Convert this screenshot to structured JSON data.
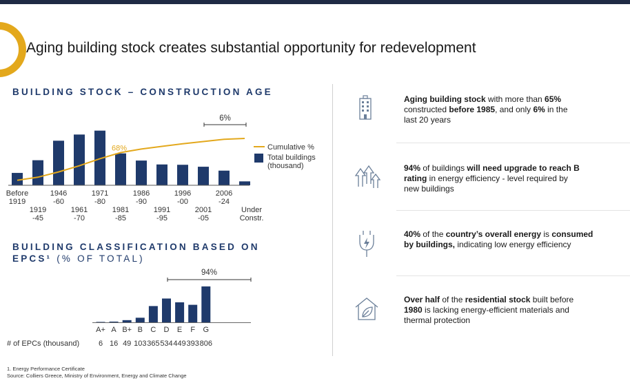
{
  "header": {
    "title": "Aging building stock creates substantial opportunity for redevelopment",
    "accent_color": "#e3a81c",
    "navy_color": "#1f3a6b"
  },
  "chart_data": [
    {
      "type": "bar",
      "title": "BUILDING STOCK – CONSTRUCTION AGE",
      "categories_top": [
        "Before 1919",
        "1946 -60",
        "1971 -80",
        "1986 -90",
        "1996 -00",
        "2006 -24"
      ],
      "categories": [
        {
          "line1": "Before",
          "line2": "1919"
        },
        {
          "line1": "1919",
          "line2": "-45"
        },
        {
          "line1": "1946",
          "line2": "-60"
        },
        {
          "line1": "1961",
          "line2": "-70"
        },
        {
          "line1": "1971",
          "line2": "-80"
        },
        {
          "line1": "1981",
          "line2": "-85"
        },
        {
          "line1": "1986",
          "line2": "-90"
        },
        {
          "line1": "1991",
          "line2": "-95"
        },
        {
          "line1": "1996",
          "line2": "-00"
        },
        {
          "line1": "2001",
          "line2": "-05"
        },
        {
          "line1": "2006",
          "line2": "-24"
        },
        {
          "line1": "Under",
          "line2": "Constr."
        }
      ],
      "values": [
        190,
        385,
        685,
        780,
        840,
        490,
        380,
        320,
        315,
        285,
        225,
        60
      ],
      "cumulative": [
        5,
        12,
        24,
        38,
        54,
        68,
        76,
        82,
        88,
        93,
        98,
        100
      ],
      "ylim": [
        0,
        900
      ],
      "annotations": {
        "cumulative_point": "68%",
        "bracket": "6%"
      },
      "legend": [
        {
          "label": "Cumulative %",
          "type": "line",
          "color": "#e3a81c"
        },
        {
          "label": "Total buildings",
          "label2": "(thousand)",
          "type": "bar",
          "color": "#1f3a6b"
        }
      ],
      "legend_position": "right"
    },
    {
      "type": "bar",
      "title": "BUILDING CLASSIFICATION BASED ON",
      "title_line2": "EPCS¹",
      "title_suffix": "(% OF TOTAL)",
      "categories": [
        "A+",
        "A",
        "B+",
        "B",
        "C",
        "D",
        "E",
        "F",
        "G"
      ],
      "values": [
        6,
        16,
        49,
        103,
        365,
        534,
        449,
        393,
        806
      ],
      "value_labels": [
        "6",
        "16",
        "49",
        "103",
        "365",
        "534",
        "449",
        "393",
        "806"
      ],
      "row_label": "# of EPCs (thousand)",
      "ylim": [
        0,
        850
      ],
      "annotations": {
        "bracket": "94%"
      },
      "color": "#1f3a6b"
    }
  ],
  "highlights": [
    {
      "icon": "building-icon",
      "lines": [
        [
          {
            "t": "Aging building stock",
            "b": true
          },
          {
            "t": " with more than ",
            "b": false
          },
          {
            "t": "65%",
            "b": true
          }
        ],
        [
          {
            "t": "constructed ",
            "b": false
          },
          {
            "t": "before 1985",
            "b": true
          },
          {
            "t": ", and only ",
            "b": false
          },
          {
            "t": "6%",
            "b": true
          },
          {
            "t": " in the",
            "b": false
          }
        ],
        [
          {
            "t": "last 20 years",
            "b": false
          }
        ]
      ]
    },
    {
      "icon": "upgrade-arrows-icon",
      "lines": [
        [
          {
            "t": "94%",
            "b": true
          },
          {
            "t": " of buildings ",
            "b": false
          },
          {
            "t": "will need upgrade to reach B",
            "b": true
          }
        ],
        [
          {
            "t": "rating",
            "b": true
          },
          {
            "t": " in energy efficiency - level required by",
            "b": false
          }
        ],
        [
          {
            "t": "new buildings",
            "b": false
          }
        ]
      ]
    },
    {
      "icon": "energy-plug-icon",
      "lines": [
        [
          {
            "t": "40%",
            "b": true
          },
          {
            "t": " of the ",
            "b": false
          },
          {
            "t": "country’s overall energy",
            "b": true
          },
          {
            "t": " is ",
            "b": false
          },
          {
            "t": "consumed",
            "b": true
          }
        ],
        [
          {
            "t": "by buildings,",
            "b": true
          },
          {
            "t": " indicating low energy efficiency",
            "b": false
          }
        ]
      ]
    },
    {
      "icon": "eco-house-icon",
      "lines": [
        [
          {
            "t": "Over half",
            "b": true
          },
          {
            "t": " of the ",
            "b": false
          },
          {
            "t": "residential stock",
            "b": true
          },
          {
            "t": " built before",
            "b": false
          }
        ],
        [
          {
            "t": "1980",
            "b": true
          },
          {
            "t": " is lacking energy-efficient materials and",
            "b": false
          }
        ],
        [
          {
            "t": "thermal protection",
            "b": false
          }
        ]
      ]
    }
  ],
  "footnotes": {
    "note1": "1. Energy Performance Certificate",
    "source": "Source: Colliers Greece, Ministry of Environment, Energy and Climate Change"
  }
}
